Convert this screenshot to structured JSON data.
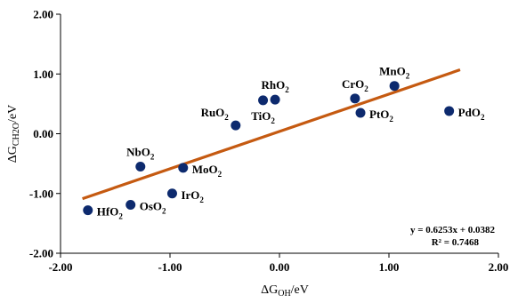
{
  "chart_data": {
    "type": "scatter",
    "xlabel": {
      "prefix": "ΔG",
      "sub": "OH",
      "suffix": "/eV"
    },
    "ylabel": {
      "prefix": "ΔG",
      "sub": "CH2O",
      "suffix": "/eV"
    },
    "xlim": [
      -2.0,
      2.0
    ],
    "ylim": [
      -2.0,
      2.0
    ],
    "x_ticks": [
      -2.0,
      -1.0,
      0.0,
      1.0,
      2.0
    ],
    "y_ticks": [
      -2.0,
      -1.0,
      0.0,
      1.0,
      2.0
    ],
    "x_tick_labels": [
      "-2.00",
      "-1.00",
      "0.00",
      "1.00",
      "2.00"
    ],
    "y_tick_labels": [
      "-2.00",
      "-1.00",
      "0.00",
      "1.00",
      "2.00"
    ],
    "grid": false,
    "marker_color": "#0d2a6e",
    "line_color": "#c55a11",
    "points": [
      {
        "x": -1.75,
        "y": -1.28,
        "label": "HfO",
        "sub": "2",
        "pos": "right"
      },
      {
        "x": -1.36,
        "y": -1.19,
        "label": "OsO",
        "sub": "2",
        "pos": "right"
      },
      {
        "x": -0.98,
        "y": -1.0,
        "label": "IrO",
        "sub": "2",
        "pos": "right"
      },
      {
        "x": -1.27,
        "y": -0.55,
        "label": "NbO",
        "sub": "2",
        "pos": "above"
      },
      {
        "x": -0.88,
        "y": -0.57,
        "label": "MoO",
        "sub": "2",
        "pos": "right"
      },
      {
        "x": -0.4,
        "y": 0.14,
        "label": "RuO",
        "sub": "2",
        "pos": "above-left"
      },
      {
        "x": -0.15,
        "y": 0.56,
        "label": "TiO",
        "sub": "2",
        "pos": "below"
      },
      {
        "x": -0.04,
        "y": 0.57,
        "label": "RhO",
        "sub": "2",
        "pos": "above"
      },
      {
        "x": 0.69,
        "y": 0.59,
        "label": "CrO",
        "sub": "2",
        "pos": "above"
      },
      {
        "x": 0.74,
        "y": 0.35,
        "label": "PtO",
        "sub": "2",
        "pos": "right"
      },
      {
        "x": 1.05,
        "y": 0.8,
        "label": "MnO",
        "sub": "2",
        "pos": "above"
      },
      {
        "x": 1.55,
        "y": 0.38,
        "label": "PdO",
        "sub": "2",
        "pos": "right"
      }
    ],
    "trendline": {
      "slope": 0.6253,
      "intercept": 0.0382,
      "x_range": [
        -1.8,
        1.65
      ]
    },
    "annotations": {
      "equation": "y = 0.6253x + 0.0382",
      "r_squared": "R² = 0.7468"
    }
  }
}
